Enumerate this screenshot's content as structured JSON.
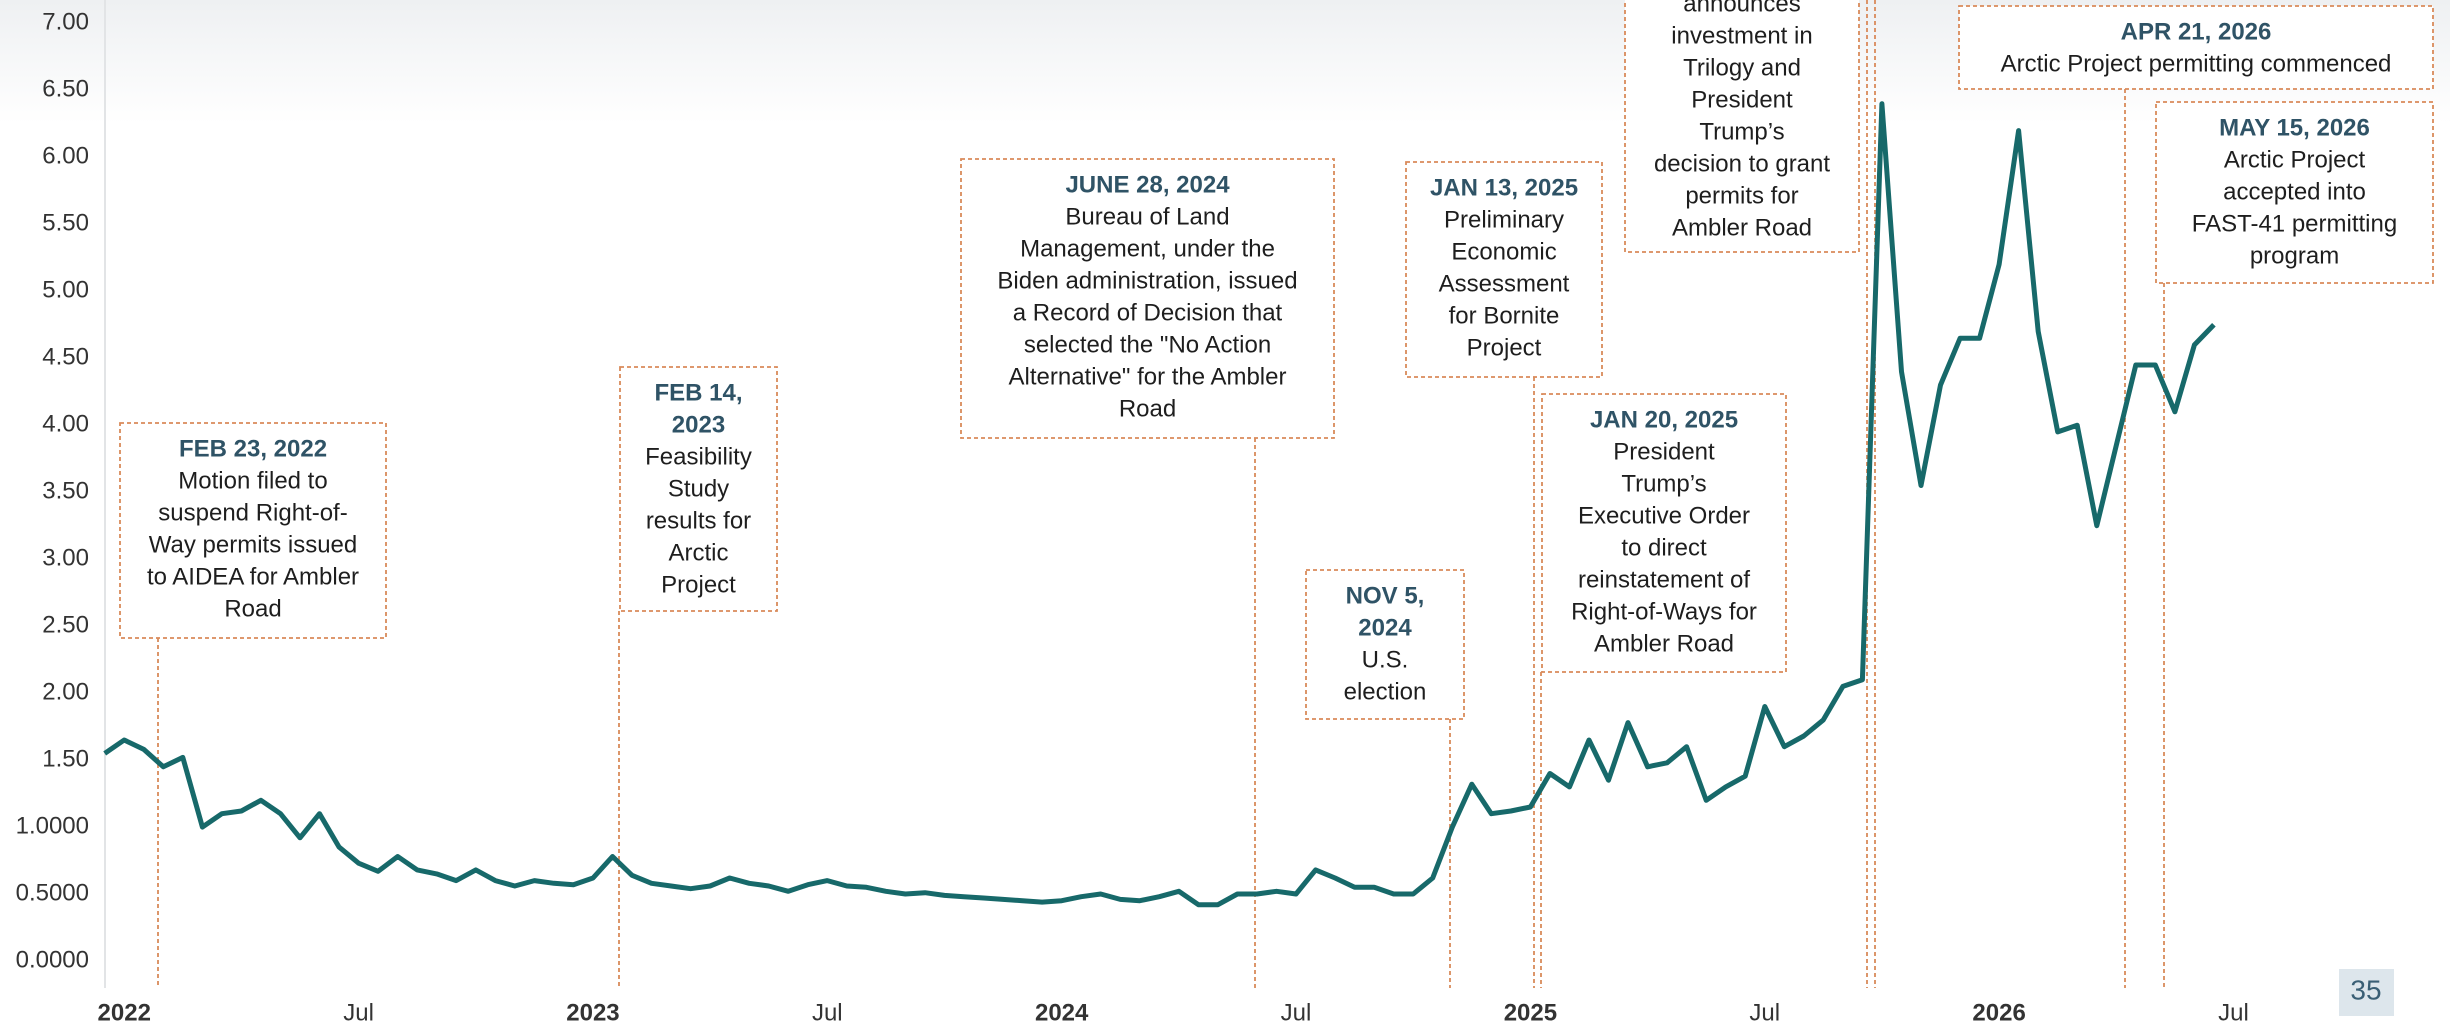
{
  "chart_data": {
    "type": "line",
    "categories": [
      null,
      "2022",
      null,
      null,
      null,
      null,
      null,
      null,
      null,
      null,
      null,
      null,
      null,
      "Jul",
      null,
      null,
      null,
      null,
      null,
      null,
      null,
      null,
      null,
      null,
      null,
      "2023",
      null,
      null,
      null,
      null,
      null,
      null,
      null,
      null,
      null,
      null,
      null,
      "Jul",
      null,
      null,
      null,
      null,
      null,
      null,
      null,
      null,
      null,
      null,
      null,
      "2024",
      null,
      null,
      null,
      null,
      null,
      null,
      null,
      null,
      null,
      null,
      null,
      "Jul",
      null,
      null,
      null,
      null,
      null,
      null,
      null,
      null,
      null,
      null,
      null,
      "2025",
      null,
      null,
      null,
      null,
      null,
      null,
      null,
      null,
      null,
      null,
      null,
      "Jul",
      null,
      null,
      null,
      null,
      null,
      null,
      null,
      null,
      null,
      null,
      null,
      "2026",
      null,
      null,
      null,
      null,
      null,
      null,
      null,
      null,
      null,
      null,
      null,
      "Jul"
    ],
    "series": [
      {
        "color": "#17696a",
        "values": [
          1.55,
          1.65,
          1.58,
          1.45,
          1.52,
          1.0,
          1.1,
          1.12,
          1.2,
          1.1,
          0.92,
          1.1,
          0.85,
          0.73,
          0.67,
          0.78,
          0.68,
          0.65,
          0.6,
          0.68,
          0.6,
          0.56,
          0.6,
          0.58,
          0.57,
          0.62,
          0.78,
          0.64,
          0.58,
          0.56,
          0.54,
          0.56,
          0.62,
          0.58,
          0.56,
          0.52,
          0.57,
          0.6,
          0.56,
          0.55,
          0.52,
          0.5,
          0.51,
          0.49,
          0.48,
          0.47,
          0.46,
          0.45,
          0.44,
          0.45,
          0.48,
          0.5,
          0.46,
          0.45,
          0.48,
          0.52,
          0.42,
          0.42,
          0.5,
          0.5,
          0.52,
          0.5,
          0.68,
          0.62,
          0.55,
          0.55,
          0.5,
          0.5,
          0.62,
          1.0,
          1.32,
          1.1,
          1.12,
          1.15,
          1.4,
          1.3,
          1.65,
          1.35,
          1.78,
          1.45,
          1.48,
          1.6,
          1.2,
          1.3,
          1.38,
          1.9,
          1.6,
          1.68,
          1.8,
          2.05,
          2.1,
          6.4,
          4.4,
          3.55,
          4.3,
          4.65,
          4.65,
          5.2,
          6.2,
          4.7,
          3.95,
          4.0,
          3.25,
          3.85,
          4.45,
          4.45,
          4.1,
          4.6,
          4.75,
          null
        ]
      }
    ],
    "ylim": [
      0,
      7
    ],
    "yticks": [
      {
        "value": 0,
        "label": "0.0000"
      },
      {
        "value": 0.5,
        "label": "0.5000"
      },
      {
        "value": 1,
        "label": "1.0000"
      },
      {
        "value": 1.5,
        "label": "1.50"
      },
      {
        "value": 2,
        "label": "2.00"
      },
      {
        "value": 2.5,
        "label": "2.50"
      },
      {
        "value": 3,
        "label": "3.00"
      },
      {
        "value": 3.5,
        "label": "3.50"
      },
      {
        "value": 4,
        "label": "4.00"
      },
      {
        "value": 4.5,
        "label": "4.50"
      },
      {
        "value": 5,
        "label": "5.00"
      },
      {
        "value": 5.5,
        "label": "5.50"
      },
      {
        "value": 6,
        "label": "6.00"
      },
      {
        "value": 6.5,
        "label": "6.50"
      },
      {
        "value": 7,
        "label": "7.00"
      }
    ],
    "annotations": [
      {
        "title": [
          "FEB 23, 2022"
        ],
        "lines": [
          "Motion filed to",
          "suspend Right-of-",
          "Way permits issued",
          "to AIDEA for Ambler",
          "Road"
        ]
      },
      {
        "title": [
          "FEB 14,",
          "2023"
        ],
        "lines": [
          "Feasibility",
          "Study",
          "results for",
          "Arctic",
          "Project"
        ]
      },
      {
        "title": [
          "JUNE 28, 2024"
        ],
        "lines": [
          "Bureau of Land",
          "Management, under the",
          "Biden administration, issued",
          "a Record of Decision that",
          "selected the \"No Action",
          "Alternative\" for the Ambler",
          "Road"
        ]
      },
      {
        "title": [
          "NOV 5,",
          "2024"
        ],
        "lines": [
          "U.S.",
          "election"
        ]
      },
      {
        "title": [
          "JAN 13, 2025"
        ],
        "lines": [
          "Preliminary",
          "Economic",
          "Assessment",
          "for Bornite",
          "Project"
        ]
      },
      {
        "title": [
          "JAN 20, 2025"
        ],
        "lines": [
          "President",
          "Trump’s",
          "Executive Order",
          "to direct",
          "reinstatement of",
          "Right-of-Ways for",
          "Ambler Road"
        ]
      },
      {
        "title": [],
        "lines": [
          "announces",
          "investment in",
          "Trilogy and",
          "President",
          "Trump’s",
          "decision to grant",
          "permits for",
          "Ambler Road"
        ]
      },
      {
        "title": [
          "APR 21, 2026"
        ],
        "lines": [
          "Arctic Project permitting commenced"
        ]
      },
      {
        "title": [
          "MAY 15, 2026"
        ],
        "lines": [
          "Arctic Project",
          "accepted into",
          "FAST-41 permitting",
          "program"
        ]
      }
    ]
  },
  "page_number": "35"
}
